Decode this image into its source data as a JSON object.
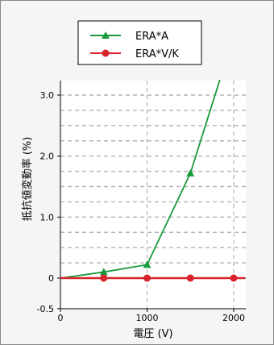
{
  "chart_data": {
    "type": "line",
    "xlabel": "電圧 (V)",
    "ylabel": "抵抗値変動率 (%)",
    "xlim": [
      0,
      2200
    ],
    "ylim": [
      -0.5,
      3.3
    ],
    "x_ticks": [
      0,
      1000,
      2000
    ],
    "x_tick_labels": [
      "0",
      "1000",
      "2000"
    ],
    "y_ticks": [
      -0.5,
      0,
      1.0,
      2.0,
      3.0
    ],
    "y_tick_labels": [
      "-0.5",
      "0",
      "1.0",
      "2.0",
      "3.0"
    ],
    "gridlines_y": [
      0.25,
      0.5,
      0.75,
      1.0,
      1.25,
      1.5,
      1.75,
      2.0,
      2.25,
      2.5,
      2.75,
      3.0
    ],
    "gridlines_x": [
      1000,
      2000
    ],
    "grid": "dashed",
    "legend_position": "top",
    "series": [
      {
        "name": "ERA*A",
        "color": "#1a9a3c",
        "marker": "triangle",
        "x": [
          0,
          500,
          1000,
          1500,
          1840
        ],
        "y": [
          0,
          0.1,
          0.22,
          1.72,
          3.25
        ],
        "marker_x": [
          500,
          1000,
          1500
        ]
      },
      {
        "name": "ERA*V/K",
        "color": "#d9232d",
        "marker": "circle",
        "x": [
          0,
          500,
          1000,
          1500,
          2000,
          2130
        ],
        "y": [
          0,
          0,
          0,
          0,
          0,
          0
        ],
        "marker_x": [
          500,
          1000,
          1500,
          2000
        ]
      }
    ]
  }
}
